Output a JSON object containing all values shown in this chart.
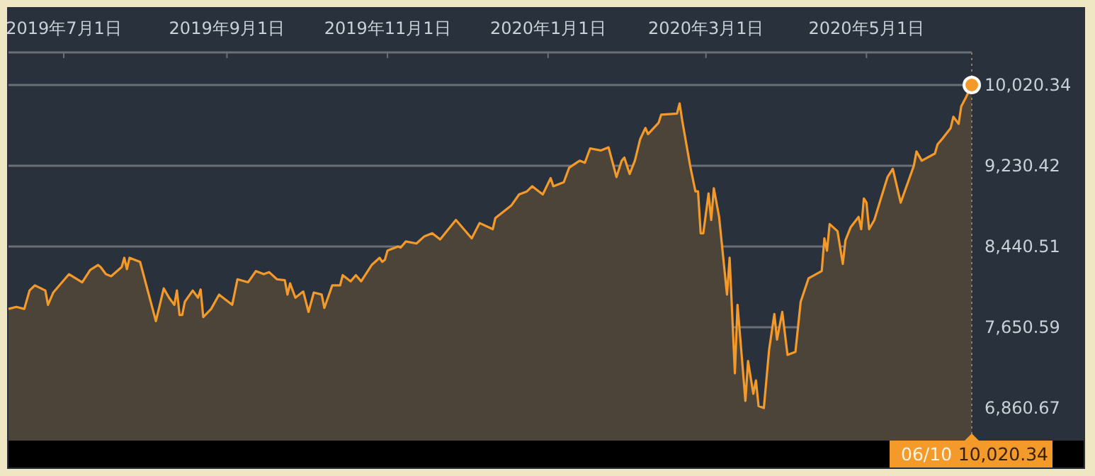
{
  "chart_data": {
    "type": "area",
    "x": [
      "2019-06-10",
      "2019-06-13",
      "2019-06-16",
      "2019-06-18",
      "2019-06-20",
      "2019-06-24",
      "2019-06-25",
      "2019-06-27",
      "2019-07-03",
      "2019-07-08",
      "2019-07-11",
      "2019-07-14",
      "2019-07-15",
      "2019-07-17",
      "2019-07-19",
      "2019-07-23",
      "2019-07-24",
      "2019-07-25",
      "2019-07-26",
      "2019-07-30",
      "2019-08-05",
      "2019-08-08",
      "2019-08-10",
      "2019-08-12",
      "2019-08-13",
      "2019-08-14",
      "2019-08-15",
      "2019-08-16",
      "2019-08-19",
      "2019-08-21",
      "2019-08-22",
      "2019-08-23",
      "2019-08-26",
      "2019-08-29",
      "2019-09-03",
      "2019-09-05",
      "2019-09-09",
      "2019-09-12",
      "2019-09-15",
      "2019-09-17",
      "2019-09-20",
      "2019-09-23",
      "2019-09-24",
      "2019-09-25",
      "2019-09-27",
      "2019-09-30",
      "2019-10-02",
      "2019-10-04",
      "2019-10-07",
      "2019-10-08",
      "2019-10-11",
      "2019-10-14",
      "2019-10-15",
      "2019-10-18",
      "2019-10-20",
      "2019-10-22",
      "2019-10-26",
      "2019-10-29",
      "2019-10-30",
      "2019-10-31",
      "2019-11-01",
      "2019-11-05",
      "2019-11-06",
      "2019-11-08",
      "2019-11-12",
      "2019-11-15",
      "2019-11-18",
      "2019-11-21",
      "2019-11-27",
      "2019-12-03",
      "2019-12-06",
      "2019-12-11",
      "2019-12-12",
      "2019-12-18",
      "2019-12-21",
      "2019-12-24",
      "2019-12-26",
      "2019-12-30",
      "2020-01-02",
      "2020-01-03",
      "2020-01-07",
      "2020-01-09",
      "2020-01-13",
      "2020-01-15",
      "2020-01-17",
      "2020-01-21",
      "2020-01-24",
      "2020-01-27",
      "2020-01-29",
      "2020-01-30",
      "2020-02-01",
      "2020-02-03",
      "2020-02-05",
      "2020-02-07",
      "2020-02-08",
      "2020-02-12",
      "2020-02-13",
      "2020-02-19",
      "2020-02-20",
      "2020-02-21",
      "2020-02-24",
      "2020-02-26",
      "2020-02-27",
      "2020-02-28",
      "2020-02-29",
      "2020-03-02",
      "2020-03-03",
      "2020-03-04",
      "2020-03-06",
      "2020-03-09",
      "2020-03-10",
      "2020-03-12",
      "2020-03-13",
      "2020-03-16",
      "2020-03-17",
      "2020-03-19",
      "2020-03-20",
      "2020-03-21",
      "2020-03-23",
      "2020-03-25",
      "2020-03-27",
      "2020-03-28",
      "2020-03-30",
      "2020-04-01",
      "2020-04-04",
      "2020-04-06",
      "2020-04-09",
      "2020-04-14",
      "2020-04-15",
      "2020-04-16",
      "2020-04-17",
      "2020-04-20",
      "2020-04-22",
      "2020-04-23",
      "2020-04-25",
      "2020-04-28",
      "2020-04-29",
      "2020-04-30",
      "2020-05-01",
      "2020-05-02",
      "2020-05-04",
      "2020-05-06",
      "2020-05-09",
      "2020-05-11",
      "2020-05-14",
      "2020-05-19",
      "2020-05-20",
      "2020-05-22",
      "2020-05-27",
      "2020-05-28",
      "2020-05-30",
      "2020-06-02",
      "2020-06-03",
      "2020-06-05",
      "2020-06-06",
      "2020-06-08",
      "2020-06-10"
    ],
    "series": [
      {
        "color": "#f39a2b",
        "values": [
          7830,
          7850,
          7830,
          8010,
          8060,
          8010,
          7870,
          7990,
          8170,
          8090,
          8210,
          8260,
          8240,
          8170,
          8150,
          8240,
          8330,
          8220,
          8330,
          8290,
          7710,
          8030,
          7940,
          7870,
          8010,
          7770,
          7770,
          7900,
          8010,
          7940,
          8020,
          7750,
          7830,
          7970,
          7870,
          8120,
          8090,
          8200,
          8170,
          8190,
          8120,
          8110,
          7970,
          8080,
          7940,
          8000,
          7800,
          7990,
          7970,
          7840,
          8060,
          8060,
          8160,
          8100,
          8160,
          8100,
          8260,
          8330,
          8290,
          8310,
          8400,
          8440,
          8430,
          8490,
          8470,
          8540,
          8570,
          8510,
          8700,
          8520,
          8670,
          8610,
          8720,
          8840,
          8950,
          8980,
          9030,
          8950,
          9110,
          9030,
          9070,
          9210,
          9280,
          9260,
          9400,
          9380,
          9410,
          9120,
          9280,
          9310,
          9150,
          9280,
          9490,
          9600,
          9540,
          9650,
          9730,
          9740,
          9840,
          9670,
          9230,
          8980,
          8980,
          8570,
          8570,
          8960,
          8700,
          9010,
          8730,
          7970,
          8330,
          7200,
          7870,
          6930,
          7320,
          7000,
          7130,
          6880,
          6860,
          7430,
          7780,
          7530,
          7800,
          7380,
          7410,
          7900,
          8130,
          8200,
          8520,
          8400,
          8660,
          8590,
          8270,
          8500,
          8630,
          8730,
          8610,
          8910,
          8870,
          8610,
          8700,
          8870,
          9120,
          9200,
          8870,
          9230,
          9370,
          9280,
          9350,
          9440,
          9500,
          9600,
          9710,
          9640,
          9810,
          9910,
          10020.34
        ]
      }
    ],
    "xlim": [
      "2019-06-10",
      "2020-06-10"
    ],
    "xticks": [
      {
        "value": "2019-07-01",
        "label": "2019年7月1日"
      },
      {
        "value": "2019-09-01",
        "label": "2019年9月1日"
      },
      {
        "value": "2019-11-01",
        "label": "2019年11月1日"
      },
      {
        "value": "2020-01-01",
        "label": "2020年1月1日"
      },
      {
        "value": "2020-03-01",
        "label": "2020年3月1日"
      },
      {
        "value": "2020-05-01",
        "label": "2020年5月1日"
      }
    ],
    "ylim": [
      6542,
      10339
    ],
    "yticks": [
      {
        "value": 6860.67,
        "label": "6,860.67"
      },
      {
        "value": 7650.59,
        "label": "7,650.59"
      },
      {
        "value": 8440.51,
        "label": "8,440.51"
      },
      {
        "value": 9230.42,
        "label": "9,230.42"
      },
      {
        "value": 10020.34,
        "label": "10,020.34"
      }
    ],
    "grid": "y",
    "ref_lines": [
      {
        "axis": "x",
        "value": "2020-06-10",
        "line_style": "dotted",
        "color": "#8a7a66"
      }
    ],
    "annotations": [
      "06/10",
      "10,020.34"
    ]
  }
}
